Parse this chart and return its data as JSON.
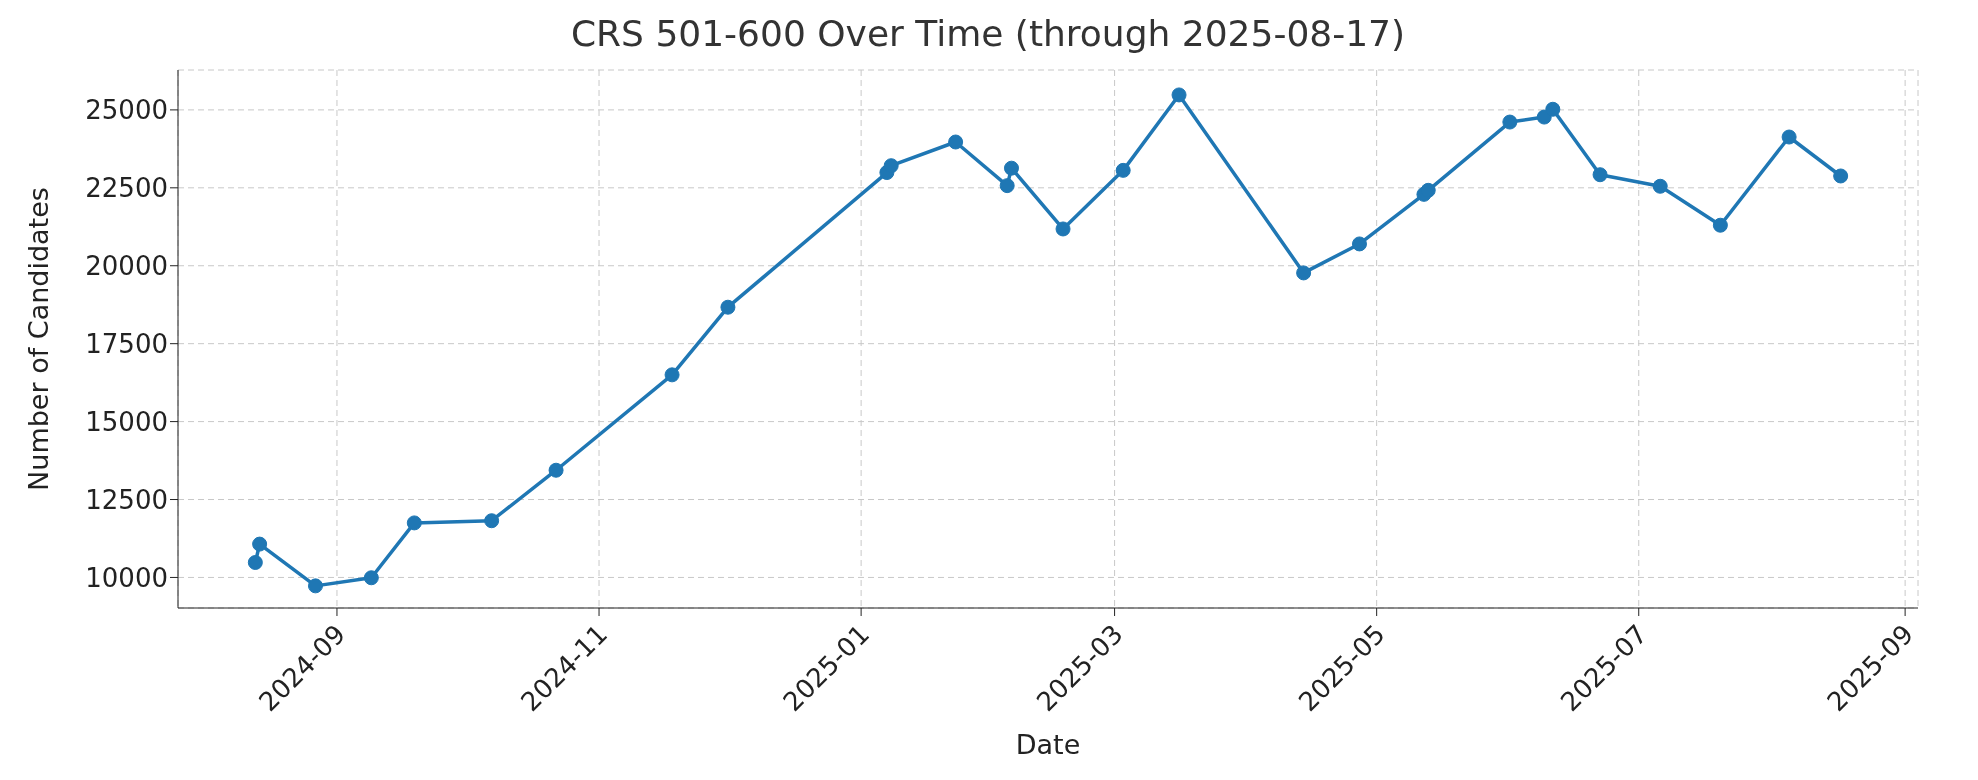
{
  "chart_data": {
    "type": "line",
    "title": "CRS 501-600 Over Time (through 2025-08-17)",
    "xlabel": "Date",
    "ylabel": "Number of Candidates",
    "x": [
      "2024-08-13",
      "2024-08-14",
      "2024-08-27",
      "2024-09-09",
      "2024-09-19",
      "2024-10-07",
      "2024-10-22",
      "2024-11-18",
      "2024-12-01",
      "2025-01-07",
      "2025-01-08",
      "2025-01-23",
      "2025-02-04",
      "2025-02-05",
      "2025-02-17",
      "2025-03-03",
      "2025-03-16",
      "2025-04-14",
      "2025-04-27",
      "2025-05-12",
      "2025-05-13",
      "2025-06-01",
      "2025-06-09",
      "2025-06-11",
      "2025-06-22",
      "2025-07-06",
      "2025-07-20",
      "2025-08-05",
      "2025-08-17"
    ],
    "series": [
      {
        "color": "#1f77b4",
        "values": [
          10480,
          11070,
          9730,
          9990,
          11750,
          11820,
          13440,
          16500,
          18670,
          22990,
          23210,
          23970,
          22570,
          23130,
          21180,
          23060,
          25480,
          19770,
          20700,
          22290,
          22420,
          24610,
          24770,
          25020,
          22920,
          22550,
          21300,
          24130,
          22880
        ]
      }
    ],
    "xlim": [
      "2024-07-26",
      "2025-09-04"
    ],
    "xticks": [
      {
        "value": "2024-09-01",
        "label": "2024-09"
      },
      {
        "value": "2024-11-01",
        "label": "2024-11"
      },
      {
        "value": "2025-01-01",
        "label": "2025-01"
      },
      {
        "value": "2025-03-01",
        "label": "2025-03"
      },
      {
        "value": "2025-05-01",
        "label": "2025-05"
      },
      {
        "value": "2025-07-01",
        "label": "2025-07"
      },
      {
        "value": "2025-09-01",
        "label": "2025-09"
      }
    ],
    "ylim": [
      9020,
      26280
    ],
    "yticks": [
      10000,
      12500,
      15000,
      17500,
      20000,
      22500,
      25000
    ],
    "grid": true,
    "marker": "circle",
    "line_style": "solid",
    "legend": false
  }
}
